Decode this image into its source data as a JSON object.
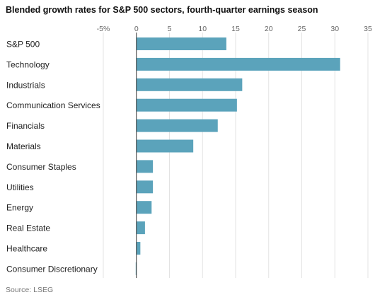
{
  "chart_data": {
    "type": "bar",
    "orientation": "horizontal",
    "title": "Blended growth rates for S&P 500 sectors, fourth-quarter earnings season",
    "source": "Source: LSEG",
    "bar_color": "#5ba3bb",
    "grid": true,
    "xlim": [
      -5,
      35
    ],
    "x_ticks": [
      -5,
      0,
      5,
      10,
      15,
      20,
      25,
      30,
      35
    ],
    "x_tick_labels": [
      "-5%",
      "0",
      "5",
      "10",
      "15",
      "20",
      "25",
      "30",
      "35"
    ],
    "categories": [
      "S&P 500",
      "Technology",
      "Industrials",
      "Communication Services",
      "Financials",
      "Materials",
      "Consumer Staples",
      "Utilities",
      "Energy",
      "Real Estate",
      "Healthcare",
      "Consumer Discretionary"
    ],
    "values": [
      13.6,
      30.8,
      16.0,
      15.2,
      12.3,
      8.6,
      2.5,
      2.5,
      2.3,
      1.3,
      0.6,
      -0.1
    ]
  }
}
